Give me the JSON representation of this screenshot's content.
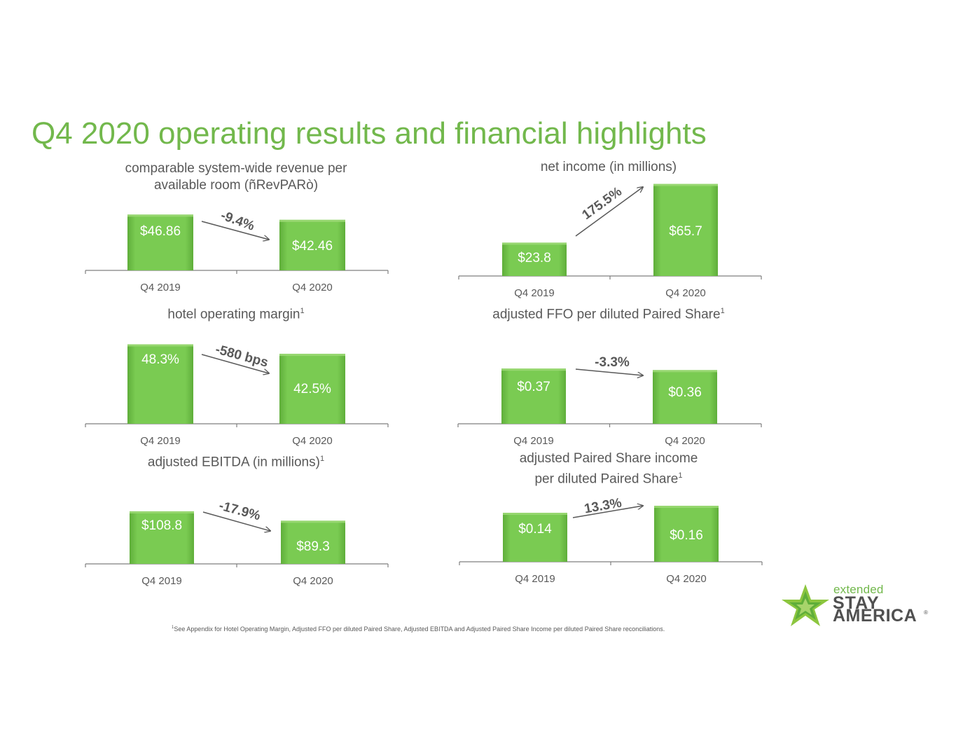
{
  "title": "Q4 2020 operating results and financial highlights",
  "footnote": {
    "marker": "1",
    "text": "See Appendix for Hotel Operating Margin, Adjusted FFO per diluted Paired Share, Adjusted EBITDA and Adjusted Paired Share Income per diluted Paired Share reconciliations."
  },
  "logo": {
    "line1": "extended",
    "line2": "STAY",
    "line3": "AMERICA",
    "registered": "®"
  },
  "colors": {
    "title": "#72b84c",
    "bar": "#76c84f",
    "bar_label": "#ffffff",
    "text": "#595959",
    "arrow": "#595959"
  },
  "chart_data": [
    {
      "id": "revpar",
      "type": "bar",
      "title_line1": "comparable system-wide revenue per",
      "title_line2": "available room (ñRevPARò)",
      "title_sup": "",
      "categories": [
        "Q4 2019",
        "Q4 2020"
      ],
      "values": [
        46.86,
        42.46
      ],
      "value_labels": [
        "$46.86",
        "$42.46"
      ],
      "change_label": "-9.4%",
      "direction": "down"
    },
    {
      "id": "net-income",
      "type": "bar",
      "title_line1": "net income (in millions)",
      "title_line2": "",
      "title_sup": "",
      "categories": [
        "Q4 2019",
        "Q4 2020"
      ],
      "values": [
        23.8,
        65.7
      ],
      "value_labels": [
        "$23.8",
        "$65.7"
      ],
      "change_label": "175.5%",
      "direction": "up"
    },
    {
      "id": "hotel-operating-margin",
      "type": "bar",
      "title_line1": "hotel operating margin",
      "title_line2": "",
      "title_sup": "1",
      "categories": [
        "Q4 2019",
        "Q4 2020"
      ],
      "values": [
        48.3,
        42.5
      ],
      "value_labels": [
        "48.3%",
        "42.5%"
      ],
      "change_label": "-580 bps",
      "direction": "down"
    },
    {
      "id": "adjusted-ffo",
      "type": "bar",
      "title_line1": "adjusted FFO per diluted Paired Share",
      "title_line2": "",
      "title_sup": "1",
      "categories": [
        "Q4 2019",
        "Q4 2020"
      ],
      "values": [
        0.37,
        0.36
      ],
      "value_labels": [
        "$0.37",
        "$0.36"
      ],
      "change_label": "-3.3%",
      "direction": "down"
    },
    {
      "id": "adjusted-ebitda",
      "type": "bar",
      "title_line1": "adjusted EBITDA (in millions)",
      "title_line2": "",
      "title_sup": "1",
      "categories": [
        "Q4 2019",
        "Q4 2020"
      ],
      "values": [
        108.8,
        89.3
      ],
      "value_labels": [
        "$108.8",
        "$89.3"
      ],
      "change_label": "-17.9%",
      "direction": "down"
    },
    {
      "id": "adjusted-paired-share-income",
      "type": "bar",
      "title_line1": "adjusted Paired Share income",
      "title_line2": "per diluted Paired Share",
      "title_sup": "1",
      "categories": [
        "Q4 2019",
        "Q4 2020"
      ],
      "values": [
        0.14,
        0.16
      ],
      "value_labels": [
        "$0.14",
        "$0.16"
      ],
      "change_label": "13.3%",
      "direction": "up"
    }
  ]
}
